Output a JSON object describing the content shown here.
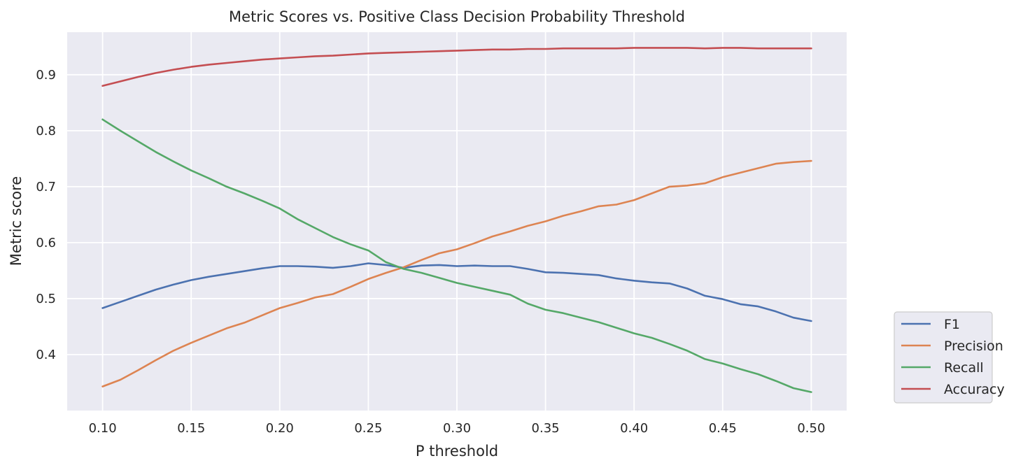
{
  "chart_data": {
    "type": "line",
    "title": "Metric Scores vs. Positive Class Decision Probability Threshold",
    "xlabel": "P threshold",
    "ylabel": "Metric score",
    "xlim": [
      0.08,
      0.52
    ],
    "ylim": [
      0.3,
      0.976
    ],
    "xticks": [
      0.1,
      0.15,
      0.2,
      0.25,
      0.3,
      0.35,
      0.4,
      0.45,
      0.5
    ],
    "xtick_labels": [
      "0.10",
      "0.15",
      "0.20",
      "0.25",
      "0.30",
      "0.35",
      "0.40",
      "0.45",
      "0.50"
    ],
    "yticks": [
      0.4,
      0.5,
      0.6,
      0.7,
      0.8,
      0.9
    ],
    "ytick_labels": [
      "0.4",
      "0.5",
      "0.6",
      "0.7",
      "0.8",
      "0.9"
    ],
    "grid": true,
    "legend_position": "outside-lower-right",
    "background": "#eaeaf2",
    "x": [
      0.1,
      0.11,
      0.12,
      0.13,
      0.14,
      0.15,
      0.16,
      0.17,
      0.18,
      0.19,
      0.2,
      0.21,
      0.22,
      0.23,
      0.24,
      0.25,
      0.26,
      0.27,
      0.28,
      0.29,
      0.3,
      0.31,
      0.32,
      0.33,
      0.34,
      0.35,
      0.36,
      0.37,
      0.38,
      0.39,
      0.4,
      0.41,
      0.42,
      0.43,
      0.44,
      0.45,
      0.46,
      0.47,
      0.48,
      0.49,
      0.5
    ],
    "series": [
      {
        "name": "F1",
        "color": "#4c72b0",
        "values": [
          0.483,
          0.494,
          0.505,
          0.516,
          0.525,
          0.533,
          0.539,
          0.544,
          0.549,
          0.554,
          0.558,
          0.558,
          0.557,
          0.555,
          0.558,
          0.563,
          0.56,
          0.555,
          0.559,
          0.56,
          0.558,
          0.559,
          0.558,
          0.558,
          0.553,
          0.547,
          0.546,
          0.544,
          0.542,
          0.536,
          0.532,
          0.529,
          0.527,
          0.518,
          0.505,
          0.499,
          0.49,
          0.486,
          0.477,
          0.466,
          0.46
        ]
      },
      {
        "name": "Precision",
        "color": "#dd8452",
        "values": [
          0.343,
          0.355,
          0.372,
          0.39,
          0.407,
          0.421,
          0.434,
          0.447,
          0.457,
          0.47,
          0.483,
          0.492,
          0.502,
          0.508,
          0.521,
          0.535,
          0.546,
          0.556,
          0.569,
          0.581,
          0.588,
          0.599,
          0.611,
          0.62,
          0.63,
          0.638,
          0.648,
          0.656,
          0.665,
          0.668,
          0.676,
          0.688,
          0.7,
          0.702,
          0.706,
          0.717,
          0.725,
          0.733,
          0.741,
          0.744,
          0.746
        ]
      },
      {
        "name": "Recall",
        "color": "#55a868",
        "values": [
          0.82,
          0.8,
          0.781,
          0.762,
          0.745,
          0.729,
          0.715,
          0.7,
          0.688,
          0.675,
          0.661,
          0.642,
          0.626,
          0.61,
          0.597,
          0.586,
          0.565,
          0.553,
          0.546,
          0.537,
          0.528,
          0.521,
          0.514,
          0.507,
          0.491,
          0.48,
          0.474,
          0.466,
          0.458,
          0.448,
          0.438,
          0.43,
          0.419,
          0.407,
          0.392,
          0.384,
          0.374,
          0.365,
          0.353,
          0.34,
          0.333
        ]
      },
      {
        "name": "Accuracy",
        "color": "#c44e52",
        "values": [
          0.88,
          0.888,
          0.896,
          0.903,
          0.909,
          0.914,
          0.918,
          0.921,
          0.924,
          0.927,
          0.929,
          0.931,
          0.933,
          0.934,
          0.936,
          0.938,
          0.939,
          0.94,
          0.941,
          0.942,
          0.943,
          0.944,
          0.945,
          0.945,
          0.946,
          0.946,
          0.947,
          0.947,
          0.947,
          0.947,
          0.948,
          0.948,
          0.948,
          0.948,
          0.947,
          0.948,
          0.948,
          0.947,
          0.947,
          0.947,
          0.947
        ]
      }
    ]
  }
}
